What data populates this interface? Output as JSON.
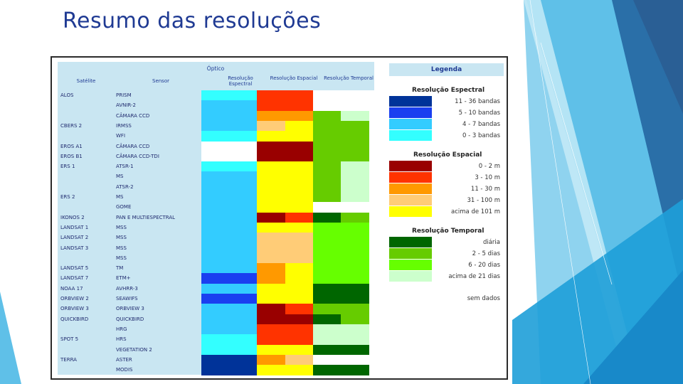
{
  "title": "Resumo das resoluções",
  "header": {
    "group": "Óptico",
    "satellite": "Satélite",
    "sensor": "Sensor",
    "spectral": "Resolução Espectral",
    "spatial": "Resolução Espacial",
    "temporal": "Resolução Temporal"
  },
  "rows": [
    {
      "sat": "ALOS",
      "sensor": "PRISM",
      "sp": "cyan",
      "es": "red",
      "te": "none"
    },
    {
      "sat": "",
      "sensor": "AVNIR-2",
      "sp": "sky",
      "es": "red",
      "te": "none"
    },
    {
      "sat": "",
      "sensor": "CÂMARA CCD",
      "sp": "sky",
      "es": "orange",
      "te": "grass|pale"
    },
    {
      "sat": "CBERS 2",
      "sensor": "IRMSS",
      "sp": "sky",
      "es": "peach|yellow",
      "te": "grass"
    },
    {
      "sat": "",
      "sensor": "WFI",
      "sp": "cyan",
      "es": "yellow",
      "te": "grass"
    },
    {
      "sat": "EROS A1",
      "sensor": "CÂMARA CCD",
      "sp": "white",
      "es": "darkred",
      "te": "grass"
    },
    {
      "sat": "EROS B1",
      "sensor": "CÂMARA CCD-TDI",
      "sp": "white",
      "es": "darkred",
      "te": "grass"
    },
    {
      "sat": "ERS 1",
      "sensor": "ATSR-1",
      "sp": "cyan",
      "es": "yellow",
      "te": "grass|pale"
    },
    {
      "sat": "",
      "sensor": "MS",
      "sp": "sky",
      "es": "yellow",
      "te": "grass|pale"
    },
    {
      "sat": "",
      "sensor": "ATSR-2",
      "sp": "sky",
      "es": "yellow",
      "te": "grass|pale"
    },
    {
      "sat": "ERS 2",
      "sensor": "MS",
      "sp": "sky",
      "es": "yellow",
      "te": "grass|pale"
    },
    {
      "sat": "",
      "sensor": "GOME",
      "sp": "sky",
      "es": "yellow",
      "te": "none"
    },
    {
      "sat": "IKONOS 2",
      "sensor": "PAN E MULTIESPECTRAL",
      "sp": "sky",
      "es": "darkred|red",
      "te": "dkgreen|grass"
    },
    {
      "sat": "LANDSAT 1",
      "sensor": "MSS",
      "sp": "sky",
      "es": "yellow",
      "te": "lime"
    },
    {
      "sat": "LANDSAT 2",
      "sensor": "MSS",
      "sp": "sky",
      "es": "peach",
      "te": "lime"
    },
    {
      "sat": "LANDSAT 3",
      "sensor": "MSS",
      "sp": "sky",
      "es": "peach",
      "te": "lime"
    },
    {
      "sat": "",
      "sensor": "MSS",
      "sp": "sky",
      "es": "peach",
      "te": "lime"
    },
    {
      "sat": "LANDSAT 5",
      "sensor": "TM",
      "sp": "sky",
      "es": "orange|yellow",
      "te": "lime"
    },
    {
      "sat": "LANDSAT 7",
      "sensor": "ETM+",
      "sp": "blue",
      "es": "orange|yellow",
      "te": "lime"
    },
    {
      "sat": "NOAA 17",
      "sensor": "AVHRR-3",
      "sp": "sky",
      "es": "yellow",
      "te": "dkgreen"
    },
    {
      "sat": "ORBVIEW 2",
      "sensor": "SEAWIFS",
      "sp": "blue",
      "es": "yellow",
      "te": "dkgreen"
    },
    {
      "sat": "ORBVIEW 3",
      "sensor": "ORBVIEW 3",
      "sp": "sky",
      "es": "darkred|red",
      "te": "grass"
    },
    {
      "sat": "QUICKBIRD",
      "sensor": "QUICKBIRD",
      "sp": "sky",
      "es": "darkred",
      "te": "dkgreen|grass"
    },
    {
      "sat": "",
      "sensor": "HRG",
      "sp": "sky",
      "es": "red",
      "te": "pale"
    },
    {
      "sat": "SPOT 5",
      "sensor": "HRS",
      "sp": "cyan",
      "es": "red",
      "te": "pale"
    },
    {
      "sat": "",
      "sensor": "VEGETATION 2",
      "sp": "cyan",
      "es": "yellow",
      "te": "dkgreen"
    },
    {
      "sat": "TERRA",
      "sensor": "ASTER",
      "sp": "navy",
      "es": "orange|peach",
      "te": "none"
    },
    {
      "sat": "",
      "sensor": "MODIS",
      "sp": "navy",
      "es": "yellow",
      "te": "dkgreen"
    }
  ],
  "legend": {
    "title": "Legenda",
    "spectral_title": "Resolução Espectral",
    "spectral": [
      {
        "label": "11 - 36 bandas",
        "color": "navy"
      },
      {
        "label": "5 - 10 bandas",
        "color": "blue"
      },
      {
        "label": "4 - 7 bandas",
        "color": "sky"
      },
      {
        "label": "0 - 3 bandas",
        "color": "cyan"
      }
    ],
    "spatial_title": "Resolução Espacial",
    "spatial": [
      {
        "label": "0 - 2 m",
        "color": "darkred"
      },
      {
        "label": "3 - 10 m",
        "color": "red"
      },
      {
        "label": "11 - 30 m",
        "color": "orange"
      },
      {
        "label": "31 - 100 m",
        "color": "peach"
      },
      {
        "label": "acima de 101 m",
        "color": "yellow"
      }
    ],
    "temporal_title": "Resolução Temporal",
    "temporal": [
      {
        "label": "diária",
        "color": "dkgreen"
      },
      {
        "label": "2 - 5 dias",
        "color": "grass"
      },
      {
        "label": "6 - 20 dias",
        "color": "lime"
      },
      {
        "label": "acima de 21 dias",
        "color": "pale"
      }
    ],
    "none_label": "sem dados"
  },
  "colors": {
    "navy": "#003399",
    "blue": "#1a3ff0",
    "sky": "#33ccff",
    "cyan": "#33ffff",
    "white": "#ffffff",
    "darkred": "#990000",
    "red": "#ff3300",
    "orange": "#ff9900",
    "peach": "#ffcc77",
    "yellow": "#ffff00",
    "dkgreen": "#006600",
    "grass": "#66cc00",
    "lime": "#66ff00",
    "pale": "#ccffcc",
    "none": "#ffffff",
    "header_bg": "#c9e6f2",
    "label_bg": "#c9e6f2",
    "title": "#1f3a93"
  }
}
